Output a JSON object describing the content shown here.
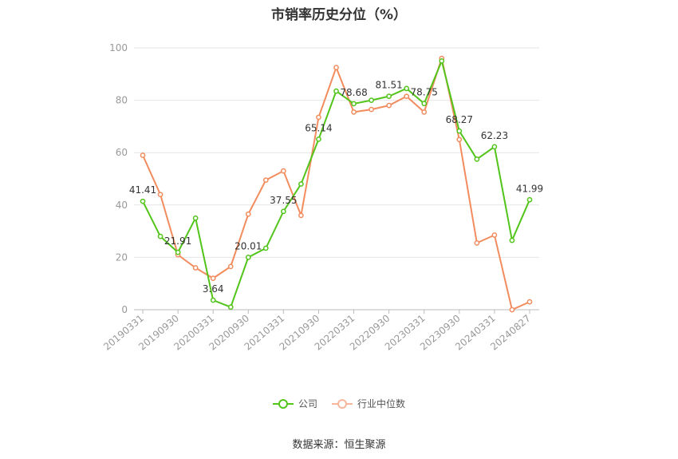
{
  "chart_data": {
    "type": "line",
    "title": "市销率历史分位（%）",
    "xlabel": "",
    "ylabel": "",
    "ylim": [
      0,
      100
    ],
    "yticks": [
      0,
      20,
      40,
      60,
      80,
      100
    ],
    "grid": true,
    "legend_position": "bottom",
    "x_tick_labels": [
      "20190331",
      "20190930",
      "20200331",
      "20200930",
      "20210331",
      "20210930",
      "20220331",
      "20220930",
      "20230331",
      "20230930",
      "20240331",
      "20240827"
    ],
    "series": [
      {
        "name": "公司",
        "color": "#52c41a",
        "values": [
          41.41,
          28.0,
          21.91,
          35.0,
          3.64,
          1.0,
          20.01,
          23.5,
          37.55,
          48.0,
          65.14,
          83.5,
          78.68,
          80.0,
          81.51,
          84.5,
          78.75,
          95.0,
          68.27,
          57.5,
          62.23,
          26.5,
          41.99
        ],
        "data_labels": {
          "0": "41.41",
          "2": "21.91",
          "4": "3.64",
          "6": "20.01",
          "8": "37.55",
          "10": "65.14",
          "12": "78.68",
          "14": "81.51",
          "16": "78.75",
          "18": "68.27",
          "20": "62.23",
          "22": "41.99"
        }
      },
      {
        "name": "行业中位数",
        "color": "#f28c5e",
        "values": [
          59.0,
          44.0,
          21.0,
          16.0,
          12.0,
          16.5,
          36.5,
          49.5,
          53.0,
          36.0,
          73.5,
          92.5,
          75.5,
          76.5,
          78.0,
          81.5,
          75.5,
          96.0,
          65.0,
          25.5,
          28.5,
          0.0,
          3.0
        ]
      }
    ]
  },
  "source_text": "数据来源：恒生聚源"
}
